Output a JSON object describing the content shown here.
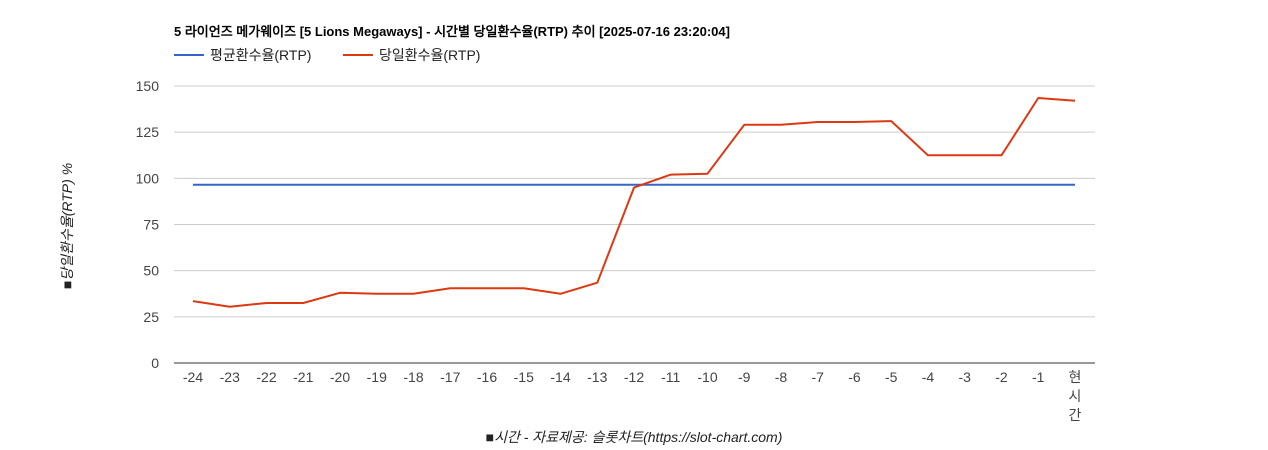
{
  "chart_data": {
    "type": "line",
    "title": "5 라이언즈 메가웨이즈 [5 Lions Megaways] - 시간별 당일환수율(RTP) 추이 [2025-07-16 23:20:04]",
    "xlabel": "■시간 - 자료제공: 슬롯차트(https://slot-chart.com)",
    "ylabel": "■당일환수율(RTP) %",
    "ylim": [
      0,
      150
    ],
    "yticks": [
      "0",
      "25",
      "50",
      "75",
      "100",
      "125",
      "150"
    ],
    "categories": [
      "-24",
      "-23",
      "-22",
      "-21",
      "-20",
      "-19",
      "-18",
      "-17",
      "-16",
      "-15",
      "-14",
      "-13",
      "-12",
      "-11",
      "-10",
      "-9",
      "-8",
      "-7",
      "-6",
      "-5",
      "-4",
      "-3",
      "-2",
      "-1",
      "현시간"
    ],
    "legend_position": "top-left",
    "grid": true,
    "series": [
      {
        "name": "평균환수율(RTP)",
        "color": "#3366cc",
        "values": [
          96.5,
          96.5,
          96.5,
          96.5,
          96.5,
          96.5,
          96.5,
          96.5,
          96.5,
          96.5,
          96.5,
          96.5,
          96.5,
          96.5,
          96.5,
          96.5,
          96.5,
          96.5,
          96.5,
          96.5,
          96.5,
          96.5,
          96.5,
          96.5,
          96.5
        ]
      },
      {
        "name": "당일환수율(RTP)",
        "color": "#dc3912",
        "values": [
          33.5,
          30.5,
          32.5,
          32.5,
          38,
          37.5,
          37.5,
          40.5,
          40.5,
          40.5,
          37.5,
          43.5,
          95,
          102,
          102.5,
          129,
          129,
          130.5,
          130.5,
          131,
          112.5,
          112.5,
          112.5,
          143.5,
          142
        ]
      }
    ]
  }
}
